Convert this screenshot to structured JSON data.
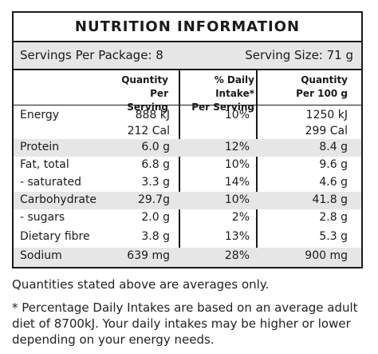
{
  "panel": {
    "title": "NUTRITION  INFORMATION",
    "servings_per_package": "Servings Per Package: 8",
    "serving_size": "Serving Size: 71 g",
    "headers": {
      "qty_serving": [
        "Quantity Per",
        "Serving"
      ],
      "daily_intake": [
        "% Daily Intake*",
        "Per Serving"
      ],
      "qty_100g": [
        "Quantity",
        "Per 100 g"
      ]
    },
    "rows": [
      {
        "nutrient": "Energy",
        "qty_serving": [
          "888 kJ",
          "212 Cal"
        ],
        "daily_intake": "10%",
        "qty_100g": [
          "1250 kJ",
          "299 Cal"
        ]
      },
      {
        "nutrient": "Protein",
        "qty_serving": [
          "6.0 g"
        ],
        "daily_intake": "12%",
        "qty_100g": [
          "8.4 g"
        ]
      },
      {
        "nutrient": "Fat, total",
        "qty_serving": [
          "6.8 g"
        ],
        "daily_intake": "10%",
        "qty_100g": [
          "9.6 g"
        ]
      },
      {
        "nutrient": "- saturated",
        "qty_serving": [
          "3.3 g"
        ],
        "daily_intake": "14%",
        "qty_100g": [
          "4.6 g"
        ]
      },
      {
        "nutrient": "Carbohydrate",
        "qty_serving": [
          "29.7g"
        ],
        "daily_intake": "10%",
        "qty_100g": [
          "41.8 g"
        ]
      },
      {
        "nutrient": "- sugars",
        "qty_serving": [
          "2.0 g"
        ],
        "daily_intake": "2%",
        "qty_100g": [
          "2.8 g"
        ]
      },
      {
        "nutrient": "Dietary fibre",
        "qty_serving": [
          "3.8 g"
        ],
        "daily_intake": "13%",
        "qty_100g": [
          "5.3 g"
        ]
      },
      {
        "nutrient": "Sodium",
        "qty_serving": [
          "639 mg"
        ],
        "daily_intake": "28%",
        "qty_100g": [
          "900 mg"
        ]
      }
    ]
  },
  "notes": {
    "averages": "Quantities stated above are averages only.",
    "daily_intake_footnote": "* Percentage Daily Intakes are based on an average adult diet of 8700kJ. Your daily intakes may be higher or lower depending on your energy needs."
  }
}
